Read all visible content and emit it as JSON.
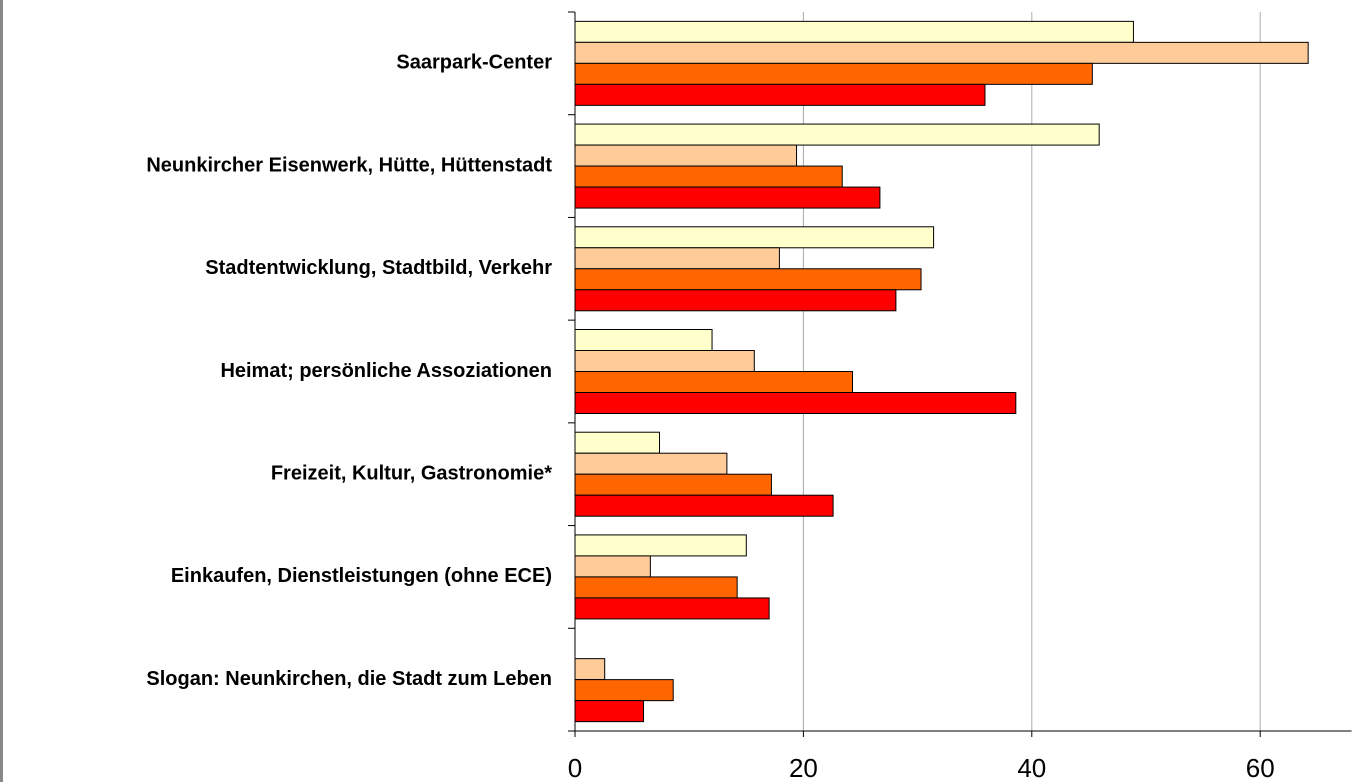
{
  "chart_data": {
    "type": "bar",
    "orientation": "horizontal",
    "categories": [
      "Saarpark-Center",
      "Neunkircher Eisenwerk, Hütte, Hüttenstadt",
      "Stadtentwicklung, Stadtbild, Verkehr",
      "Heimat; persönliche Assoziationen",
      "Freizeit, Kultur, Gastronomie*",
      "Einkaufen, Dienstleistungen (ohne ECE)",
      "Slogan: Neunkirchen, die Stadt zum Leben"
    ],
    "series": [
      {
        "color": "#ffffcc",
        "values": [
          48.9,
          45.9,
          31.4,
          12.0,
          7.4,
          15.0,
          null
        ]
      },
      {
        "color": "#ffcc99",
        "values": [
          64.2,
          19.4,
          17.9,
          15.7,
          13.3,
          6.6,
          2.6
        ]
      },
      {
        "color": "#ff6600",
        "values": [
          45.3,
          23.4,
          30.3,
          24.3,
          17.2,
          14.2,
          8.6
        ]
      },
      {
        "color": "#ff0000",
        "values": [
          35.9,
          26.7,
          28.1,
          38.6,
          22.6,
          17.0,
          6.0
        ]
      }
    ],
    "xlim": [
      0,
      68
    ],
    "xticks": [
      0,
      20,
      40,
      60
    ],
    "grid": true
  }
}
